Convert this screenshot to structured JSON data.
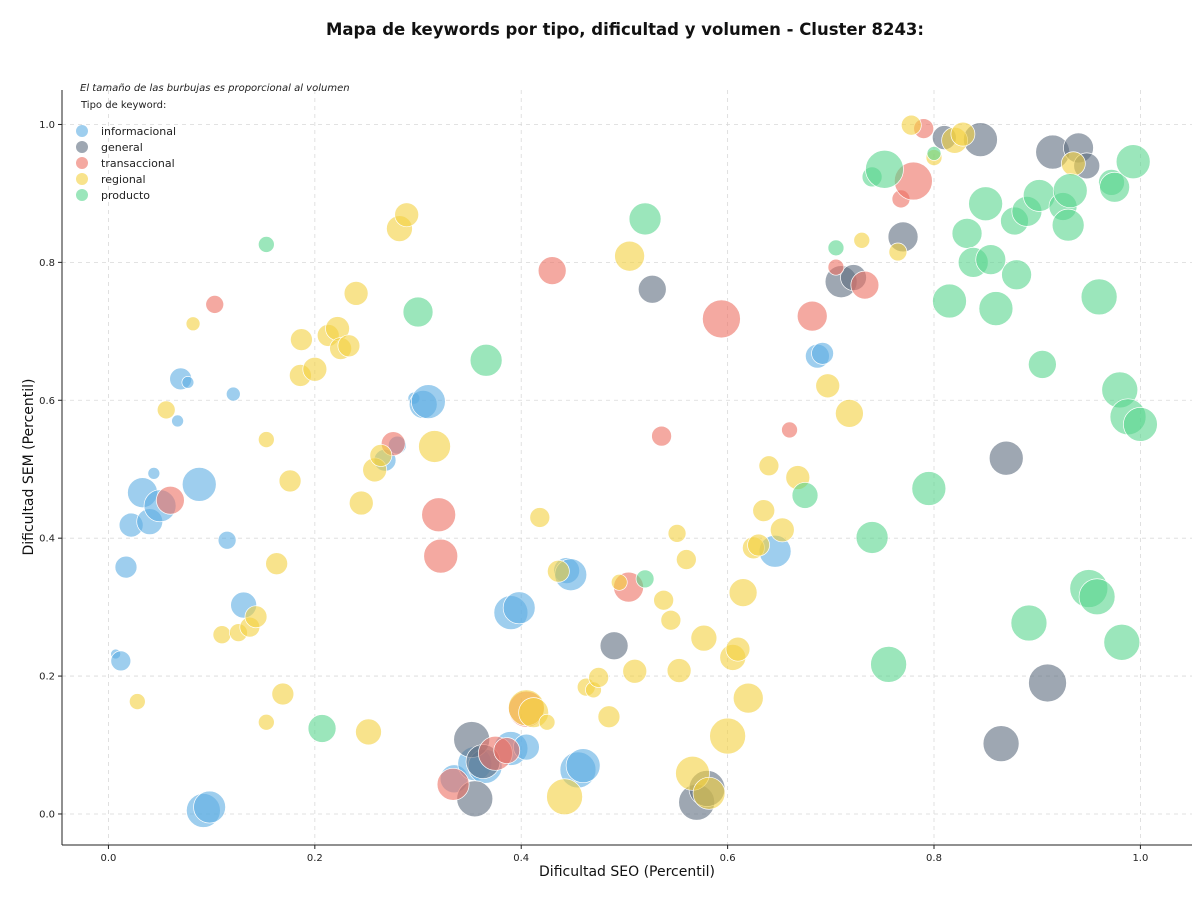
{
  "chart_data": {
    "type": "scatter",
    "title": "Mapa de keywords por tipo, dificultad y volumen - Cluster 8243:",
    "note": "El tamaño de las burbujas es proporcional al volumen",
    "xlabel": "Dificultad SEO (Percentil)",
    "ylabel": "Dificultad SEM (Percentil)",
    "xlim": [
      -0.045,
      1.05
    ],
    "ylim": [
      -0.045,
      1.05
    ],
    "xticks": [
      "0.0",
      "0.2",
      "0.4",
      "0.6",
      "0.8",
      "1.0"
    ],
    "yticks": [
      "0.0",
      "0.2",
      "0.4",
      "0.6",
      "0.8",
      "1.0"
    ],
    "grid": true,
    "legend": {
      "title": "Tipo de keyword:",
      "placement": "top-left"
    },
    "series": [
      {
        "name": "informacional",
        "color": "#5dade2",
        "points": [
          [
            0.007,
            0.232,
            5
          ],
          [
            0.012,
            0.222,
            10
          ],
          [
            0.017,
            0.358,
            11
          ],
          [
            0.022,
            0.419,
            12
          ],
          [
            0.033,
            0.466,
            15
          ],
          [
            0.04,
            0.424,
            13
          ],
          [
            0.044,
            0.494,
            6
          ],
          [
            0.05,
            0.447,
            16
          ],
          [
            0.07,
            0.631,
            11
          ],
          [
            0.077,
            0.626,
            6
          ],
          [
            0.067,
            0.57,
            6
          ],
          [
            0.088,
            0.478,
            17
          ],
          [
            0.092,
            0.005,
            17
          ],
          [
            0.098,
            0.01,
            16
          ],
          [
            0.115,
            0.397,
            9
          ],
          [
            0.121,
            0.609,
            7
          ],
          [
            0.131,
            0.303,
            13
          ],
          [
            0.268,
            0.513,
            11
          ],
          [
            0.28,
            0.535,
            9
          ],
          [
            0.296,
            0.603,
            6
          ],
          [
            0.305,
            0.594,
            14
          ],
          [
            0.31,
            0.598,
            17
          ],
          [
            0.335,
            0.051,
            14
          ],
          [
            0.355,
            0.073,
            17
          ],
          [
            0.365,
            0.069,
            17
          ],
          [
            0.39,
            0.292,
            17
          ],
          [
            0.398,
            0.299,
            16
          ],
          [
            0.39,
            0.095,
            17
          ],
          [
            0.405,
            0.097,
            13
          ],
          [
            0.444,
            0.353,
            13
          ],
          [
            0.448,
            0.347,
            16
          ],
          [
            0.455,
            0.064,
            18
          ],
          [
            0.46,
            0.07,
            17
          ],
          [
            0.646,
            0.381,
            16
          ],
          [
            0.687,
            0.664,
            12
          ],
          [
            0.692,
            0.668,
            11
          ]
        ]
      },
      {
        "name": "general",
        "color": "#5d6d7e",
        "points": [
          [
            0.352,
            0.108,
            18
          ],
          [
            0.355,
            0.022,
            18
          ],
          [
            0.363,
            0.076,
            17
          ],
          [
            0.49,
            0.244,
            14
          ],
          [
            0.527,
            0.761,
            14
          ],
          [
            0.57,
            0.017,
            18
          ],
          [
            0.58,
            0.037,
            18
          ],
          [
            0.71,
            0.772,
            16
          ],
          [
            0.722,
            0.778,
            13
          ],
          [
            0.77,
            0.837,
            15
          ],
          [
            0.81,
            0.981,
            12
          ],
          [
            0.845,
            0.978,
            17
          ],
          [
            0.87,
            0.516,
            17
          ],
          [
            0.865,
            0.102,
            18
          ],
          [
            0.91,
            0.19,
            19
          ],
          [
            0.915,
            0.96,
            17
          ],
          [
            0.94,
            0.966,
            15
          ],
          [
            0.948,
            0.94,
            13
          ]
        ]
      },
      {
        "name": "transaccional",
        "color": "#ec7063",
        "points": [
          [
            0.06,
            0.455,
            14
          ],
          [
            0.103,
            0.739,
            9
          ],
          [
            0.276,
            0.537,
            12
          ],
          [
            0.32,
            0.434,
            17
          ],
          [
            0.322,
            0.374,
            17
          ],
          [
            0.334,
            0.043,
            16
          ],
          [
            0.375,
            0.088,
            17
          ],
          [
            0.386,
            0.092,
            13
          ],
          [
            0.405,
            0.152,
            18
          ],
          [
            0.43,
            0.788,
            14
          ],
          [
            0.504,
            0.329,
            15
          ],
          [
            0.536,
            0.548,
            10
          ],
          [
            0.594,
            0.718,
            19
          ],
          [
            0.66,
            0.557,
            8
          ],
          [
            0.682,
            0.722,
            15
          ],
          [
            0.705,
            0.793,
            8
          ],
          [
            0.733,
            0.767,
            14
          ],
          [
            0.768,
            0.892,
            9
          ],
          [
            0.78,
            0.918,
            19
          ],
          [
            0.79,
            0.994,
            10
          ]
        ]
      },
      {
        "name": "regional",
        "color": "#f4d03f",
        "points": [
          [
            0.028,
            0.163,
            8
          ],
          [
            0.056,
            0.586,
            9
          ],
          [
            0.082,
            0.711,
            7
          ],
          [
            0.11,
            0.26,
            9
          ],
          [
            0.126,
            0.263,
            9
          ],
          [
            0.137,
            0.271,
            10
          ],
          [
            0.143,
            0.286,
            11
          ],
          [
            0.153,
            0.543,
            8
          ],
          [
            0.153,
            0.133,
            8
          ],
          [
            0.163,
            0.363,
            11
          ],
          [
            0.169,
            0.174,
            11
          ],
          [
            0.176,
            0.483,
            11
          ],
          [
            0.186,
            0.636,
            11
          ],
          [
            0.187,
            0.688,
            11
          ],
          [
            0.2,
            0.645,
            12
          ],
          [
            0.213,
            0.694,
            11
          ],
          [
            0.222,
            0.704,
            12
          ],
          [
            0.225,
            0.675,
            11
          ],
          [
            0.233,
            0.679,
            11
          ],
          [
            0.24,
            0.755,
            12
          ],
          [
            0.245,
            0.451,
            12
          ],
          [
            0.252,
            0.119,
            13
          ],
          [
            0.258,
            0.499,
            12
          ],
          [
            0.264,
            0.52,
            11
          ],
          [
            0.282,
            0.849,
            13
          ],
          [
            0.289,
            0.869,
            12
          ],
          [
            0.316,
            0.533,
            16
          ],
          [
            0.405,
            0.154,
            18
          ],
          [
            0.412,
            0.147,
            15
          ],
          [
            0.418,
            0.43,
            10
          ],
          [
            0.425,
            0.133,
            8
          ],
          [
            0.436,
            0.352,
            11
          ],
          [
            0.442,
            0.025,
            18
          ],
          [
            0.463,
            0.184,
            9
          ],
          [
            0.47,
            0.18,
            8
          ],
          [
            0.475,
            0.198,
            10
          ],
          [
            0.485,
            0.141,
            11
          ],
          [
            0.495,
            0.336,
            8
          ],
          [
            0.505,
            0.809,
            15
          ],
          [
            0.51,
            0.207,
            12
          ],
          [
            0.538,
            0.31,
            10
          ],
          [
            0.545,
            0.281,
            10
          ],
          [
            0.551,
            0.407,
            9
          ],
          [
            0.553,
            0.208,
            12
          ],
          [
            0.56,
            0.369,
            10
          ],
          [
            0.566,
            0.059,
            17
          ],
          [
            0.577,
            0.255,
            13
          ],
          [
            0.582,
            0.03,
            16
          ],
          [
            0.6,
            0.113,
            18
          ],
          [
            0.605,
            0.227,
            13
          ],
          [
            0.61,
            0.239,
            12
          ],
          [
            0.615,
            0.321,
            14
          ],
          [
            0.62,
            0.168,
            15
          ],
          [
            0.625,
            0.386,
            11
          ],
          [
            0.63,
            0.39,
            11
          ],
          [
            0.635,
            0.44,
            11
          ],
          [
            0.64,
            0.505,
            10
          ],
          [
            0.653,
            0.412,
            12
          ],
          [
            0.668,
            0.488,
            12
          ],
          [
            0.697,
            0.621,
            12
          ],
          [
            0.718,
            0.581,
            14
          ],
          [
            0.73,
            0.832,
            8
          ],
          [
            0.765,
            0.815,
            9
          ],
          [
            0.778,
            0.999,
            10
          ],
          [
            0.8,
            0.952,
            8
          ],
          [
            0.82,
            0.977,
            13
          ],
          [
            0.828,
            0.986,
            12
          ],
          [
            0.935,
            0.943,
            12
          ]
        ]
      },
      {
        "name": "producto",
        "color": "#58d68d",
        "points": [
          [
            0.153,
            0.826,
            8
          ],
          [
            0.207,
            0.124,
            14
          ],
          [
            0.3,
            0.728,
            15
          ],
          [
            0.366,
            0.658,
            16
          ],
          [
            0.52,
            0.341,
            9
          ],
          [
            0.52,
            0.863,
            16
          ],
          [
            0.675,
            0.462,
            13
          ],
          [
            0.705,
            0.821,
            8
          ],
          [
            0.74,
            0.924,
            10
          ],
          [
            0.74,
            0.401,
            16
          ],
          [
            0.752,
            0.935,
            19
          ],
          [
            0.756,
            0.217,
            18
          ],
          [
            0.795,
            0.472,
            17
          ],
          [
            0.8,
            0.958,
            7
          ],
          [
            0.815,
            0.744,
            17
          ],
          [
            0.832,
            0.842,
            15
          ],
          [
            0.838,
            0.8,
            15
          ],
          [
            0.85,
            0.885,
            17
          ],
          [
            0.855,
            0.804,
            15
          ],
          [
            0.86,
            0.733,
            17
          ],
          [
            0.878,
            0.86,
            14
          ],
          [
            0.88,
            0.782,
            15
          ],
          [
            0.89,
            0.874,
            15
          ],
          [
            0.892,
            0.277,
            18
          ],
          [
            0.905,
            0.652,
            14
          ],
          [
            0.902,
            0.897,
            16
          ],
          [
            0.925,
            0.881,
            14
          ],
          [
            0.93,
            0.854,
            16
          ],
          [
            0.932,
            0.904,
            17
          ],
          [
            0.95,
            0.327,
            19
          ],
          [
            0.958,
            0.315,
            18
          ],
          [
            0.96,
            0.75,
            18
          ],
          [
            0.972,
            0.916,
            13
          ],
          [
            0.975,
            0.909,
            15
          ],
          [
            0.982,
            0.249,
            18
          ],
          [
            0.98,
            0.615,
            18
          ],
          [
            0.988,
            0.576,
            18
          ],
          [
            0.993,
            0.946,
            17
          ],
          [
            1.0,
            0.565,
            17
          ]
        ]
      }
    ]
  }
}
